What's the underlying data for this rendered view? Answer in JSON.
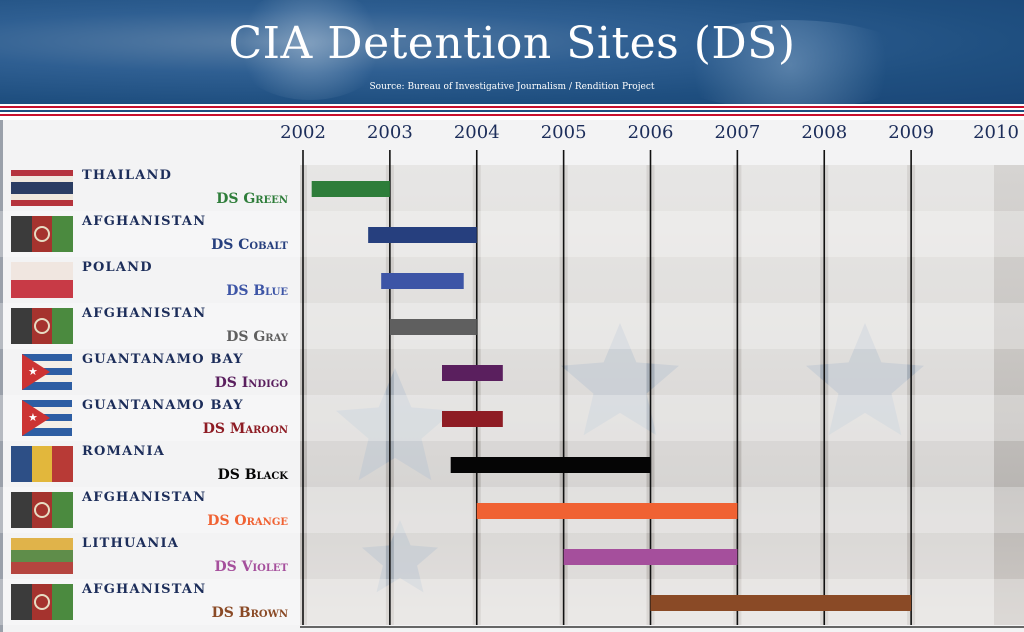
{
  "header": {
    "title": "CIA Detention Sites (DS)",
    "source": "Source: Bureau of Investigative Journalism / Rendition Project"
  },
  "chart_data": {
    "type": "bar",
    "orientation": "horizontal-timeline",
    "title": "CIA Detention Sites (DS)",
    "subtitle": "Source: Bureau of Investigative Journalism / Rendition Project",
    "x_ticks": [
      "2002",
      "2003",
      "2004",
      "2005",
      "2006",
      "2007",
      "2008",
      "2009",
      "2010"
    ],
    "xlim": [
      2002,
      2010
    ],
    "rows": [
      {
        "country": "THAILAND",
        "site": "DS Green",
        "start": 2002.1,
        "end": 2003.0,
        "color": "#2e7d3a",
        "flag": "thailand"
      },
      {
        "country": "AFGHANISTAN",
        "site": "DS Cobalt",
        "start": 2002.75,
        "end": 2004.0,
        "color": "#263f7e",
        "flag": "afghanistan"
      },
      {
        "country": "POLAND",
        "site": "DS Blue",
        "start": 2002.9,
        "end": 2003.85,
        "color": "#3d55a6",
        "flag": "poland"
      },
      {
        "country": "AFGHANISTAN",
        "site": "DS Gray",
        "start": 2003.0,
        "end": 2004.0,
        "color": "#5f5f5f",
        "flag": "afghanistan"
      },
      {
        "country": "GUANTANAMO BAY",
        "site": "DS Indigo",
        "start": 2003.6,
        "end": 2004.3,
        "color": "#5a1f5e",
        "flag": "cuba"
      },
      {
        "country": "GUANTANAMO BAY",
        "site": "DS Maroon",
        "start": 2003.6,
        "end": 2004.3,
        "color": "#8e1c24",
        "flag": "cuba"
      },
      {
        "country": "ROMANIA",
        "site": "DS Black",
        "start": 2003.7,
        "end": 2006.0,
        "color": "#050505",
        "flag": "romania"
      },
      {
        "country": "AFGHANISTAN",
        "site": "DS Orange",
        "start": 2004.0,
        "end": 2007.0,
        "color": "#f06233",
        "flag": "afghanistan"
      },
      {
        "country": "LITHUANIA",
        "site": "DS Violet",
        "start": 2005.0,
        "end": 2007.0,
        "color": "#a54f9c",
        "flag": "lithuania"
      },
      {
        "country": "AFGHANISTAN",
        "site": "DS Brown",
        "start": 2006.0,
        "end": 2009.0,
        "color": "#8a4a26",
        "flag": "afghanistan"
      }
    ],
    "grid": true,
    "legend": "none"
  }
}
